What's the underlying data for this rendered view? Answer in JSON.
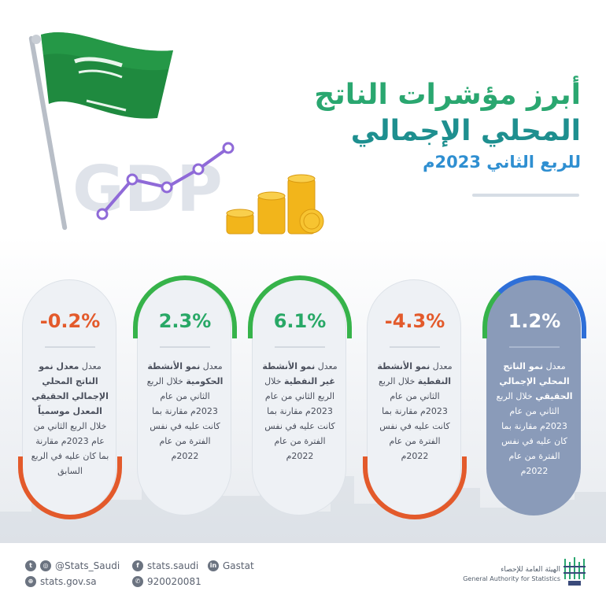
{
  "header": {
    "title_line1": "أبرز مؤشرات الناتج",
    "title_line2": "المحلي الإجمالي",
    "subtitle": "للربع الثاني 2023م",
    "hero_badge_text": "GDP"
  },
  "colors": {
    "green": "#36b34a",
    "orange": "#e35a2b",
    "blue": "#2e6fd8",
    "highlight_card": "#8a9bb9"
  },
  "cards": [
    {
      "value": "-0.2%",
      "desc_pre": "معدل ",
      "desc_bold": "معدل نمو الناتج المحلي الإجمالي الحقيقي المعدل موسمياً",
      "desc_post": " خلال الربع الثاني من عام 2023م مقارنة بما كان عليه في الربع السابق"
    },
    {
      "value": "2.3%",
      "desc_pre": "معدل ",
      "desc_bold": "نمو الأنشطة الحكومية",
      "desc_post": " خلال الربع الثاني من عام 2023م مقارنة بما كانت عليه في نفس الفترة من عام 2022م"
    },
    {
      "value": "6.1%",
      "desc_pre": "معدل ",
      "desc_bold": "نمو الأنشطة غير النفطية",
      "desc_post": " خلال الربع الثاني من عام 2023م مقارنة بما كانت عليه في نفس الفترة من عام 2022م"
    },
    {
      "value": "-4.3%",
      "desc_pre": "معدل ",
      "desc_bold": "نمو الأنشطة النفطية",
      "desc_post": " خلال الربع الثاني من عام 2023م مقارنة بما كانت عليه في نفس الفترة من عام 2022م"
    },
    {
      "value": "1.2%",
      "desc_pre": "معدل ",
      "desc_bold": "نمو الناتج المحلي الإجمالي الحقيقي",
      "desc_post": " خلال الربع الثاني من عام 2023م مقارنة بما كان عليه في نفس الفترة من عام 2022م"
    }
  ],
  "footer": {
    "twitter_instagram": "@Stats_Saudi",
    "facebook": "stats.saudi",
    "linkedin": "Gastat",
    "website": "stats.gov.sa",
    "phone": "920020081",
    "org_name_ar": "الهيئة العامة للإحصاء",
    "org_name_en": "General Authority for Statistics"
  }
}
